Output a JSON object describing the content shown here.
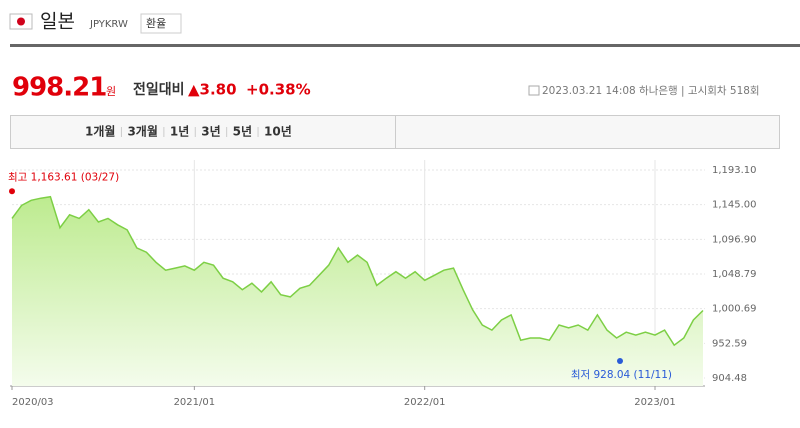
{
  "header": {
    "title": "일본",
    "code": "JPYKRW",
    "button": "환율"
  },
  "quote": {
    "price": "998.21",
    "unit": "원",
    "change_label": "전일대비",
    "change": "▲3.80",
    "change_pct": "+0.38%",
    "info": "2023.03.21 14:08 하나은행 | 고시회차 518회"
  },
  "tabs": {
    "items": [
      "1개월",
      "3개월",
      "1년",
      "3년",
      "5년",
      "10년"
    ],
    "active": "3년"
  },
  "chart_data": {
    "type": "area",
    "color": "#7dcf45",
    "values": [
      1126,
      1144,
      1151,
      1154,
      1156,
      1113,
      1131,
      1126,
      1138,
      1121,
      1126,
      1117,
      1110,
      1085,
      1079,
      1065,
      1054,
      1057,
      1060,
      1054,
      1065,
      1061,
      1043,
      1038,
      1027,
      1036,
      1024,
      1038,
      1020,
      1017,
      1029,
      1033,
      1047,
      1061,
      1085,
      1065,
      1075,
      1065,
      1033,
      1043,
      1052,
      1043,
      1052,
      1040,
      1047,
      1054,
      1057,
      1027,
      999,
      978,
      971,
      985,
      992,
      957,
      960,
      960,
      957,
      978,
      974,
      978,
      971,
      992,
      971,
      960,
      968,
      964,
      968,
      964,
      971,
      950,
      960,
      985,
      998.21
    ],
    "xlim": [
      0,
      72
    ],
    "xticks": [
      {
        "value": 0,
        "label": "2020/03"
      },
      {
        "value": 19,
        "label": "2021/01"
      },
      {
        "value": 43,
        "label": "2022/01"
      },
      {
        "value": 67,
        "label": "2023/01"
      }
    ],
    "ylim": [
      904.48,
      1193.1
    ],
    "yticks": [
      {
        "value": 1193.1,
        "label": "1,193.10"
      },
      {
        "value": 1145.0,
        "label": "1,145.00"
      },
      {
        "value": 1096.9,
        "label": "1,096.90"
      },
      {
        "value": 1048.79,
        "label": "1,048.79"
      },
      {
        "value": 1000.69,
        "label": "1,000.69"
      },
      {
        "value": 952.59,
        "label": "952.59"
      },
      {
        "value": 904.48,
        "label": "904.48"
      }
    ],
    "grid": true,
    "annotations": [
      {
        "label": "최고 1,163.61 (03/27)",
        "value": 1163.61,
        "color": "#e0000a"
      },
      {
        "label": "최저 928.04 (11/11)",
        "value": 928.04,
        "color": "#2a5bd7"
      }
    ]
  }
}
